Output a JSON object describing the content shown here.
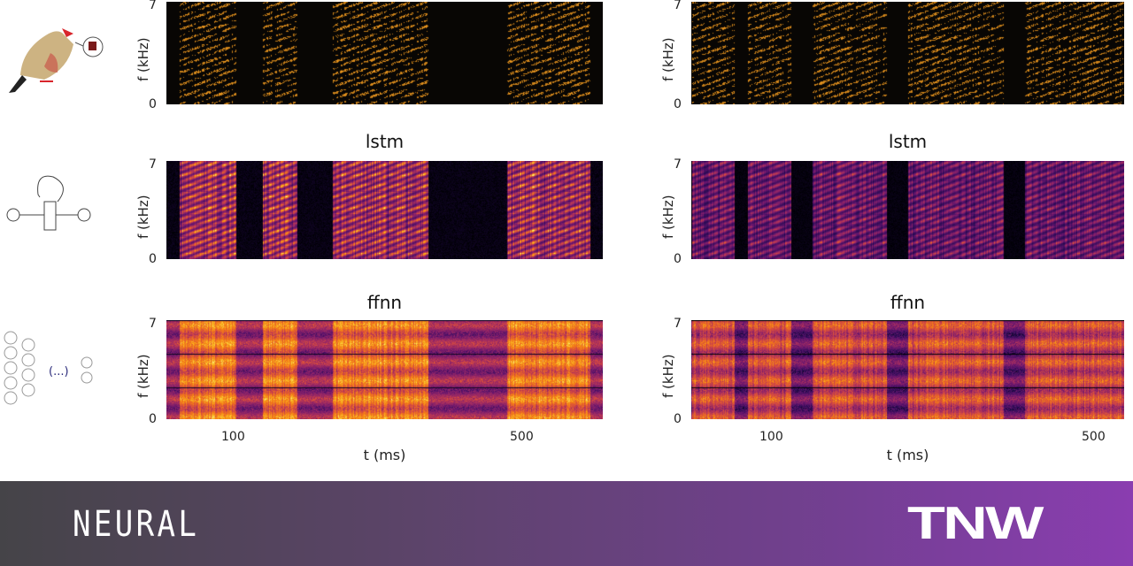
{
  "rows": [
    {
      "title": "",
      "icon": "zebra-finch-icon"
    },
    {
      "title": "lstm",
      "icon": "recurrent-cell-icon"
    },
    {
      "title": "ffnn",
      "icon": "feedforward-network-icon"
    }
  ],
  "axes": {
    "ylabel": "f (kHz)",
    "ytick_top": "7",
    "ytick_bottom": "0",
    "xlabel": "t (ms)",
    "xtick_1": "100",
    "xtick_2": "500"
  },
  "icons": {
    "ellipsis": "(...)"
  },
  "banner": {
    "left": "NEURAL",
    "right": "TNW"
  }
}
